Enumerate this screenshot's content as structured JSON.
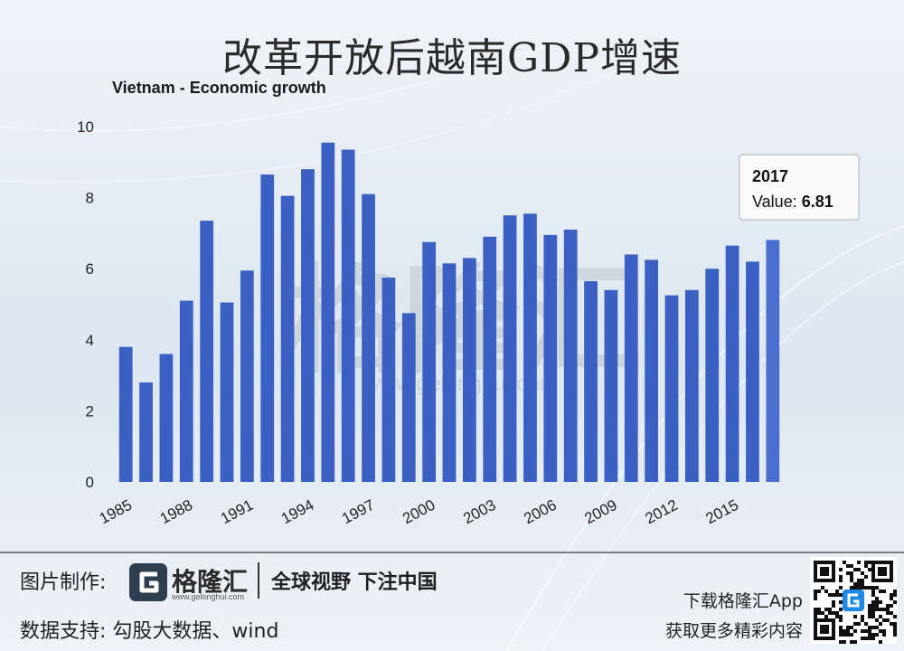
{
  "header": {
    "title": "改革开放后越南GDP增速"
  },
  "chart_data": {
    "type": "bar",
    "title": "Vietnam - Economic growth",
    "x": [
      1985,
      1986,
      1987,
      1988,
      1989,
      1990,
      1991,
      1992,
      1993,
      1994,
      1995,
      1996,
      1997,
      1998,
      1999,
      2000,
      2001,
      2002,
      2003,
      2004,
      2005,
      2006,
      2007,
      2008,
      2009,
      2010,
      2011,
      2012,
      2013,
      2014,
      2015,
      2016,
      2017
    ],
    "values": [
      3.8,
      2.8,
      3.6,
      5.1,
      7.35,
      5.05,
      5.95,
      8.65,
      8.05,
      8.8,
      9.55,
      9.35,
      8.1,
      5.75,
      4.75,
      6.75,
      6.15,
      6.3,
      6.9,
      7.5,
      7.55,
      6.95,
      7.1,
      5.65,
      5.4,
      6.4,
      6.25,
      5.25,
      5.4,
      6.0,
      6.65,
      6.2,
      6.81
    ],
    "xtick_labels": [
      "1985",
      "1988",
      "1991",
      "1994",
      "1997",
      "2000",
      "2003",
      "2006",
      "2009",
      "2012",
      "2015"
    ],
    "yticks": [
      0,
      2,
      4,
      6,
      8,
      10
    ],
    "ylim": [
      0,
      10
    ],
    "grid": "none",
    "bar_color": "#3b60c4",
    "highlight_color": "#4a6fd0",
    "tooltip": {
      "year": "2017",
      "label": "Value: ",
      "value": "6.81"
    }
  },
  "watermark": {
    "text": "格隆汇",
    "url": "www.gelonghui.com"
  },
  "footer": {
    "credit_label": "图片制作:",
    "brand_name": "格隆汇",
    "brand_url": "www.gelonghui.com",
    "slogan": "全球视野 下注中国",
    "data_source": "数据支持: 勾股大数据、wind",
    "app_download": "下载格隆汇App",
    "app_promo": "获取更多精彩内容"
  }
}
